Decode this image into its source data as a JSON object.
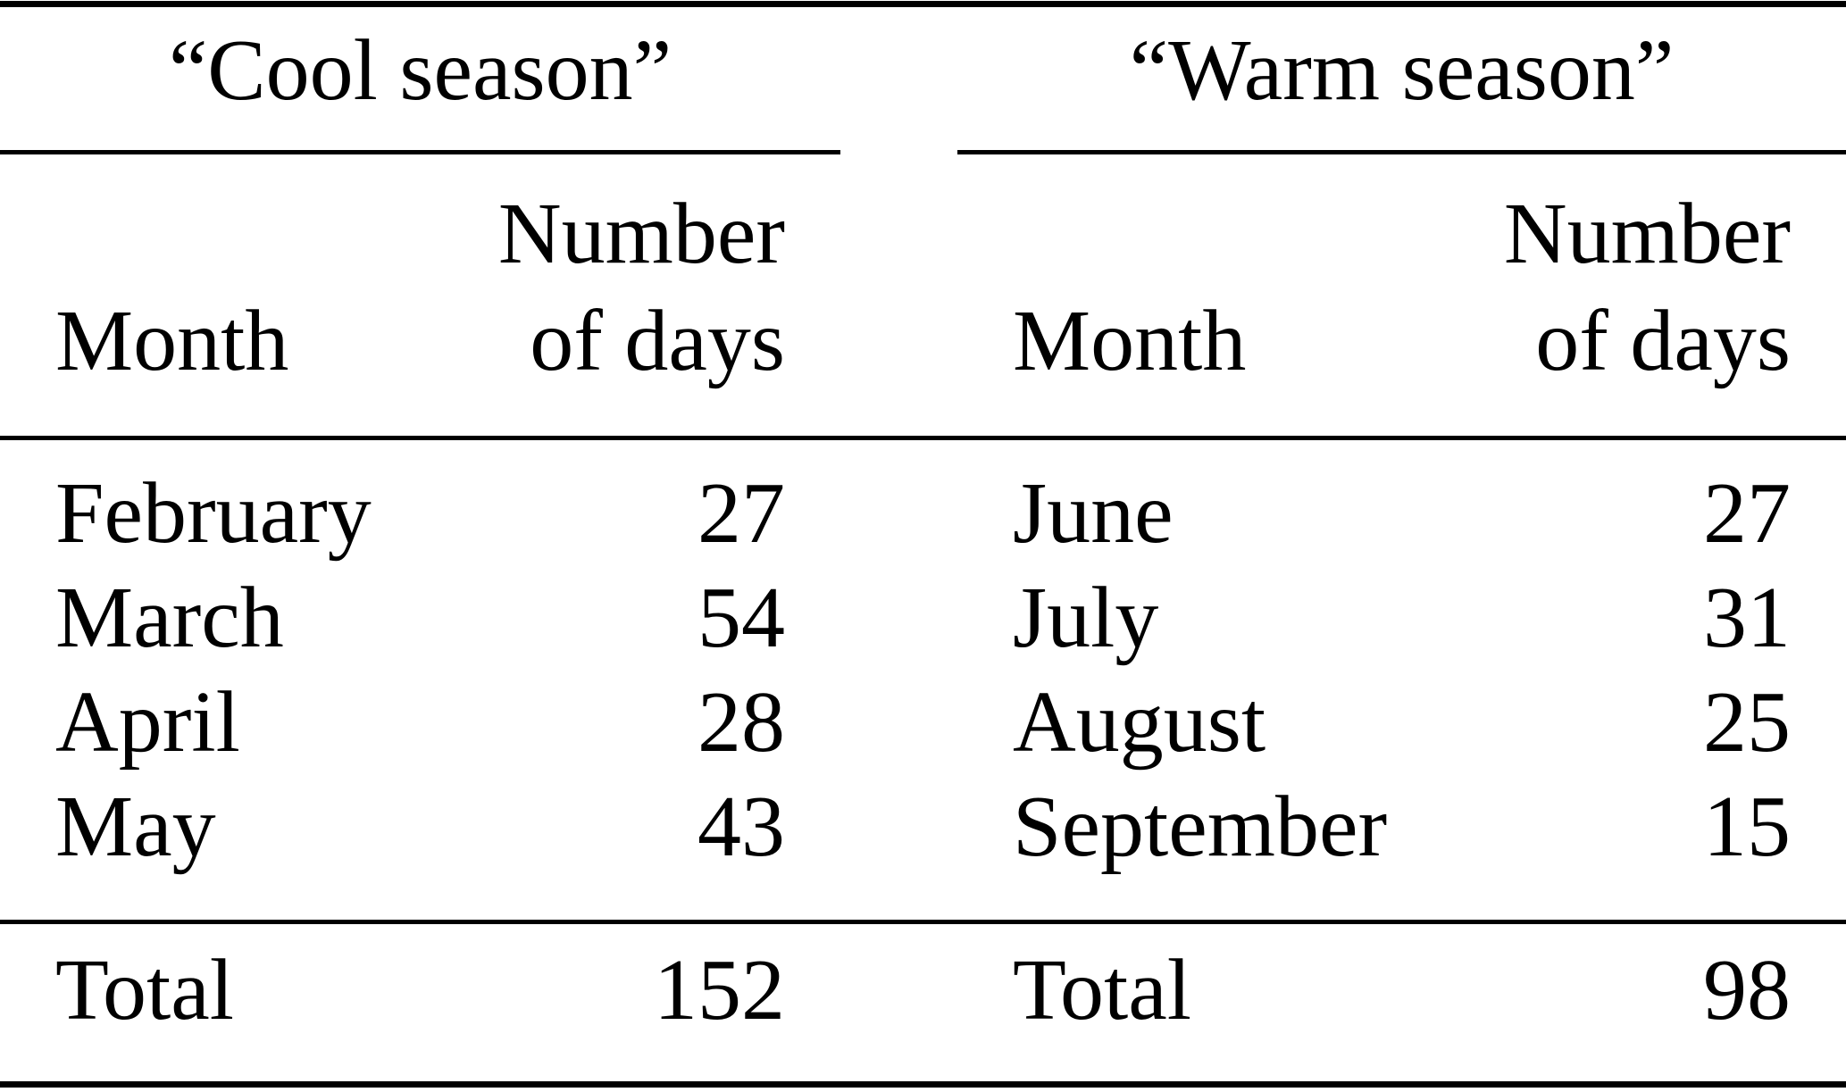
{
  "page": {
    "background_color": "#ffffff",
    "text_color": "#000000"
  },
  "tables": [
    {
      "season_title": "“Cool season”",
      "col_month": "Month",
      "col_number_line1": "Number",
      "col_number_line2": "of days",
      "rows": [
        {
          "month": "February",
          "days": "27"
        },
        {
          "month": "March",
          "days": "54"
        },
        {
          "month": "April",
          "days": "28"
        },
        {
          "month": "May",
          "days": "43"
        }
      ],
      "total_label": "Total",
      "total_value": "152"
    },
    {
      "season_title": "“Warm season”",
      "col_month": "Month",
      "col_number_line1": "Number",
      "col_number_line2": "of days",
      "rows": [
        {
          "month": "June",
          "days": "27"
        },
        {
          "month": "July",
          "days": "31"
        },
        {
          "month": "August",
          "days": "25"
        },
        {
          "month": "September",
          "days": "15"
        }
      ],
      "total_label": "Total",
      "total_value": "98"
    }
  ],
  "chart_data": [
    {
      "type": "table",
      "title": "“Cool season”",
      "columns": [
        "Month",
        "Number of days"
      ],
      "rows": [
        [
          "February",
          27
        ],
        [
          "March",
          54
        ],
        [
          "April",
          28
        ],
        [
          "May",
          43
        ]
      ],
      "total_row": [
        "Total",
        152
      ]
    },
    {
      "type": "table",
      "title": "“Warm season”",
      "columns": [
        "Month",
        "Number of days"
      ],
      "rows": [
        [
          "June",
          27
        ],
        [
          "July",
          31
        ],
        [
          "August",
          25
        ],
        [
          "September",
          15
        ]
      ],
      "total_row": [
        "Total",
        98
      ]
    }
  ]
}
